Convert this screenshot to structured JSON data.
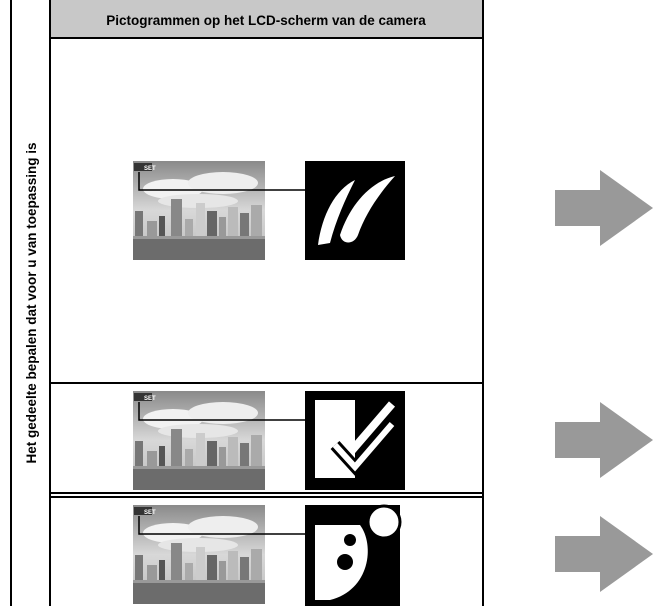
{
  "header": {
    "title": "Pictogrammen op het LCD-scherm van de camera"
  },
  "side_label": "Het gedeelte bepalen dat voor u van toepassing is",
  "rows": [
    {
      "badge": "SET"
    },
    {
      "badge": "SET"
    },
    {
      "badge": "SET"
    }
  ]
}
